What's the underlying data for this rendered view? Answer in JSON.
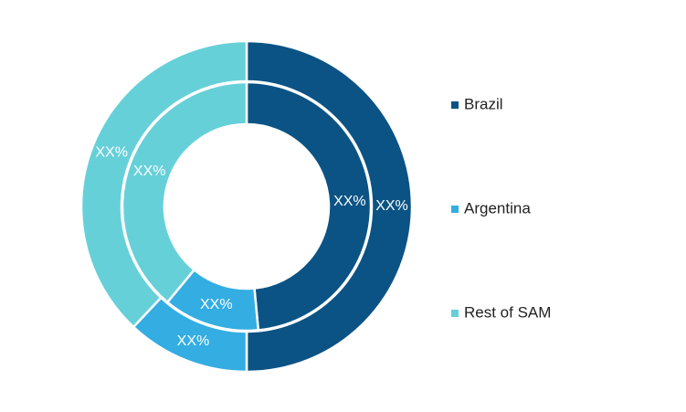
{
  "chart_data": {
    "type": "nested-donut",
    "categories": [
      "Brazil",
      "Argentina",
      "Rest of SAM"
    ],
    "colors": [
      "#0b5384",
      "#33ade2",
      "#66d0d9"
    ],
    "rings": [
      {
        "values": [
          50,
          12,
          38
        ],
        "value_labels": [
          "XX%",
          "XX%",
          "XX%"
        ]
      },
      {
        "values": [
          48.5,
          12.5,
          39
        ],
        "value_labels": [
          "XX%",
          "XX%",
          "XX%"
        ]
      }
    ]
  }
}
